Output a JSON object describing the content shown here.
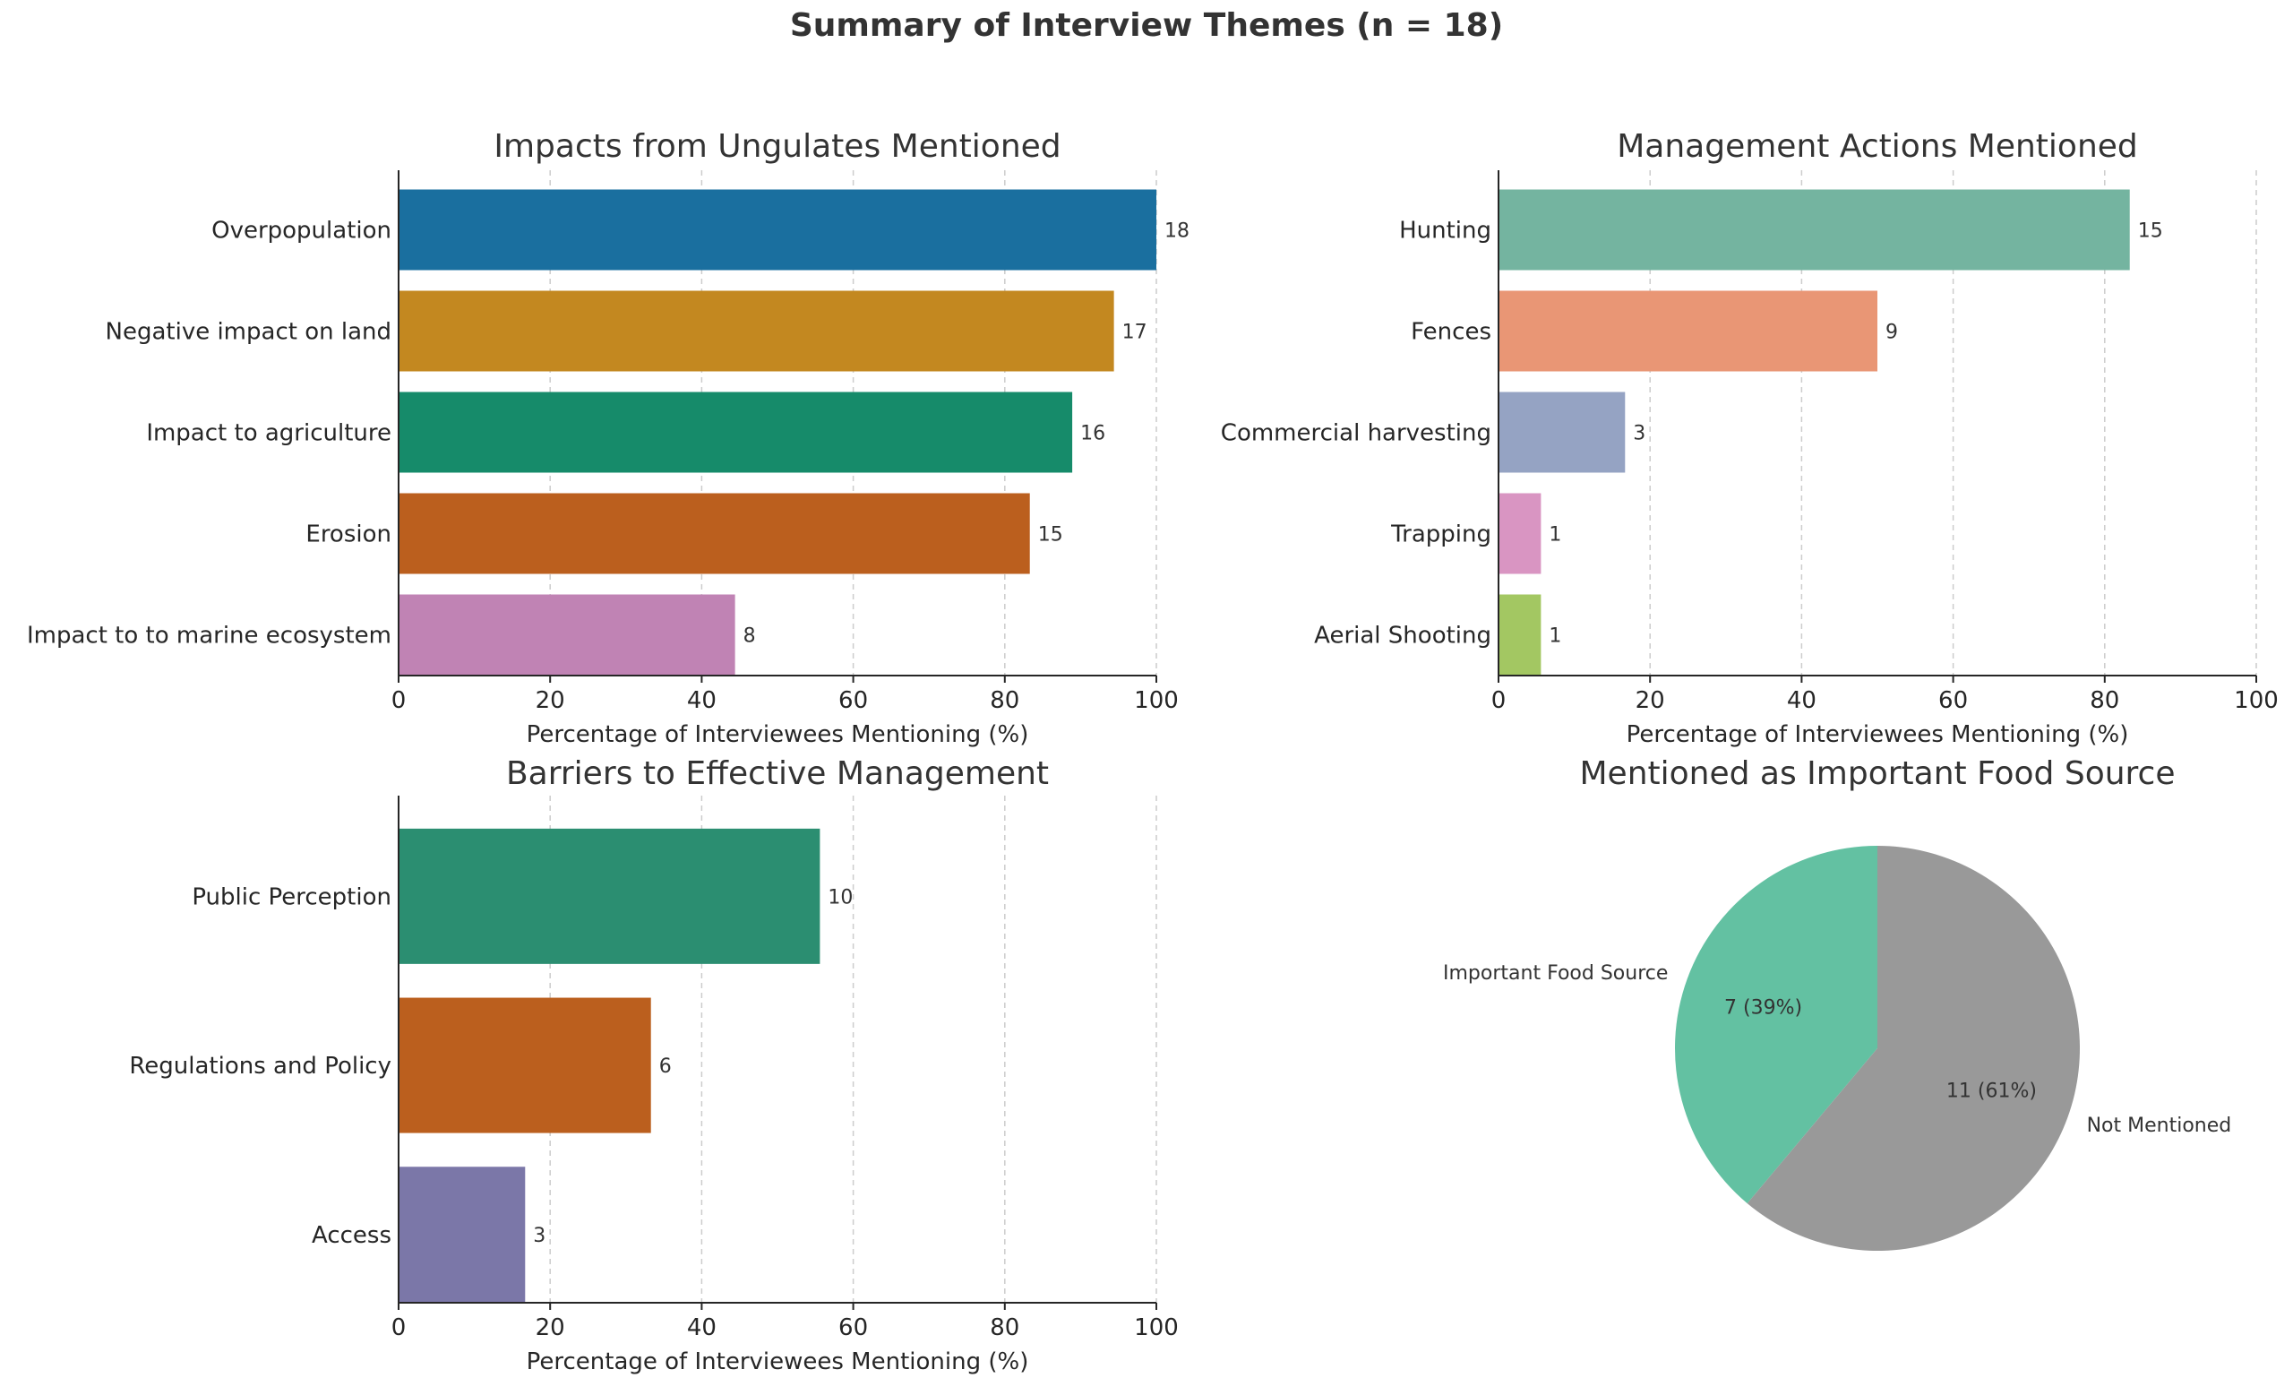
{
  "suptitle": "Summary of Interview Themes (n = 18)",
  "chart_data": [
    {
      "type": "bar",
      "orientation": "horizontal",
      "title": "Impacts from Ungulates Mentioned",
      "xlabel": "Percentage of Interviewees Mentioning (%)",
      "ylabel": "",
      "xlim": [
        0,
        100
      ],
      "xticks": [
        0,
        20,
        40,
        60,
        80,
        100
      ],
      "grid": "x-dashed",
      "categories": [
        "Overpopulation",
        "Negative impact on land",
        "Impact to agriculture",
        "Erosion",
        "Impact to to marine ecosystem"
      ],
      "counts": [
        18,
        17,
        16,
        15,
        8
      ],
      "values": [
        100,
        94.4,
        88.9,
        83.3,
        44.4
      ],
      "colors": [
        "#1a6f9f",
        "#c38820",
        "#168b6a",
        "#bb5f1e",
        "#c083b4"
      ]
    },
    {
      "type": "bar",
      "orientation": "horizontal",
      "title": "Management Actions Mentioned",
      "xlabel": "Percentage of Interviewees Mentioning (%)",
      "ylabel": "",
      "xlim": [
        0,
        100
      ],
      "xticks": [
        0,
        20,
        40,
        60,
        80,
        100
      ],
      "grid": "x-dashed",
      "categories": [
        "Hunting",
        "Fences",
        "Commercial harvesting",
        "Trapping",
        "Aerial Shooting"
      ],
      "counts": [
        15,
        9,
        3,
        1,
        1
      ],
      "values": [
        83.3,
        50,
        16.7,
        5.6,
        5.6
      ],
      "colors": [
        "#74b4a0",
        "#e99675",
        "#95a3c3",
        "#d995c2",
        "#a3c762"
      ]
    },
    {
      "type": "bar",
      "orientation": "horizontal",
      "title": "Barriers to Effective Management",
      "xlabel": "Percentage of Interviewees Mentioning (%)",
      "ylabel": "",
      "xlim": [
        0,
        100
      ],
      "xticks": [
        0,
        20,
        40,
        60,
        80,
        100
      ],
      "grid": "x-dashed",
      "categories": [
        "Public Perception",
        "Regulations and Policy",
        "Access"
      ],
      "counts": [
        10,
        6,
        3
      ],
      "values": [
        55.6,
        33.3,
        16.7
      ],
      "colors": [
        "#2b8e71",
        "#bb5f1e",
        "#7b77a8"
      ]
    },
    {
      "type": "pie",
      "title": "Mentioned as Important Food Source",
      "labels": [
        "Important Food Source",
        "Not Mentioned"
      ],
      "values": [
        7,
        11
      ],
      "autopct": [
        "7 (39%)",
        "11 (61%)"
      ],
      "colors": [
        "#63c1a2",
        "#999999"
      ],
      "startangle": 90
    }
  ]
}
